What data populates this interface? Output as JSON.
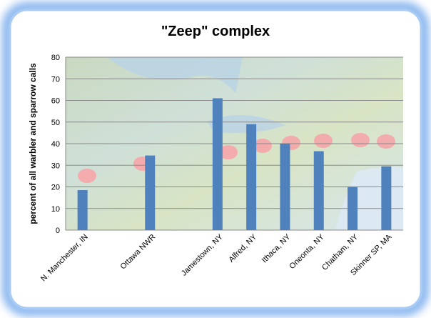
{
  "chart_data": {
    "type": "bar",
    "title": "\"Zeep\" complex",
    "y_label": "percent of all warbler and sparrow calls",
    "categories": [
      "N. Manchester, IN",
      null,
      "Ottawa NWR",
      null,
      "Jamestown, NY",
      "Alfred, NY",
      "Ithaca, NY",
      "Oneonta, NY",
      "Chatham, NY",
      "Skinner SP, MA"
    ],
    "values": [
      18.5,
      null,
      34.5,
      null,
      61,
      49,
      40,
      36.5,
      20,
      29.5
    ],
    "color": "#4f81bd",
    "ylim": [
      0,
      80
    ],
    "yticks": [
      0,
      10,
      20,
      30,
      40,
      50,
      60,
      70,
      80
    ],
    "grid": true
  }
}
